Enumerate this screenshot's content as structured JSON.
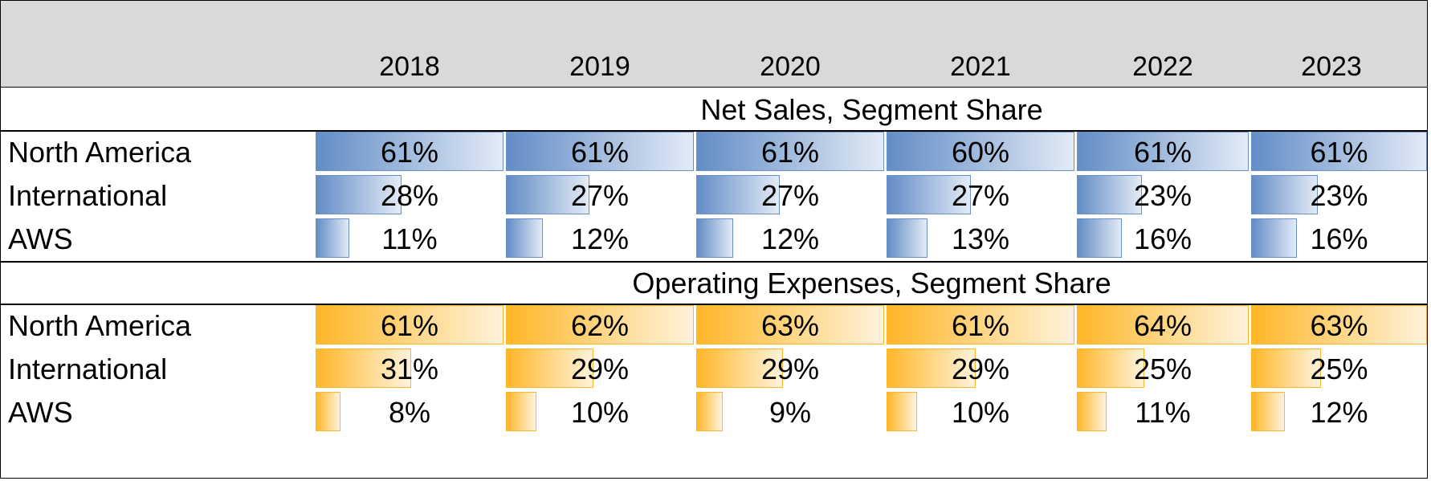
{
  "chart_data": {
    "type": "table",
    "title": "",
    "years": [
      "2018",
      "2019",
      "2020",
      "2021",
      "2022",
      "2023"
    ],
    "sections": [
      {
        "title": "Net Sales, Segment Share",
        "color": "#638EC6",
        "color_light": "#E3EBF6",
        "rows": [
          {
            "label": "North America",
            "values": [
              61,
              61,
              61,
              60,
              61,
              61
            ],
            "display": [
              "61%",
              "61%",
              "61%",
              "60%",
              "61%",
              "61%"
            ]
          },
          {
            "label": "International",
            "values": [
              28,
              27,
              27,
              27,
              23,
              23
            ],
            "display": [
              "28%",
              "27%",
              "27%",
              "27%",
              "23%",
              "23%"
            ]
          },
          {
            "label": "AWS",
            "values": [
              11,
              12,
              12,
              13,
              16,
              16
            ],
            "display": [
              "11%",
              "12%",
              "12%",
              "13%",
              "16%",
              "16%"
            ]
          }
        ]
      },
      {
        "title": "Operating Expenses, Segment Share",
        "color": "#FFB628",
        "color_light": "#FFF2DC",
        "rows": [
          {
            "label": "North America",
            "values": [
              61,
              62,
              63,
              61,
              64,
              63
            ],
            "display": [
              "61%",
              "62%",
              "63%",
              "61%",
              "64%",
              "63%"
            ]
          },
          {
            "label": "International",
            "values": [
              31,
              29,
              29,
              29,
              25,
              25
            ],
            "display": [
              "31%",
              "29%",
              "29%",
              "29%",
              "25%",
              "25%"
            ]
          },
          {
            "label": "AWS",
            "values": [
              8,
              10,
              9,
              10,
              11,
              12
            ],
            "display": [
              "8%",
              "10%",
              "9%",
              "10%",
              "11%",
              "12%"
            ]
          }
        ]
      }
    ]
  }
}
